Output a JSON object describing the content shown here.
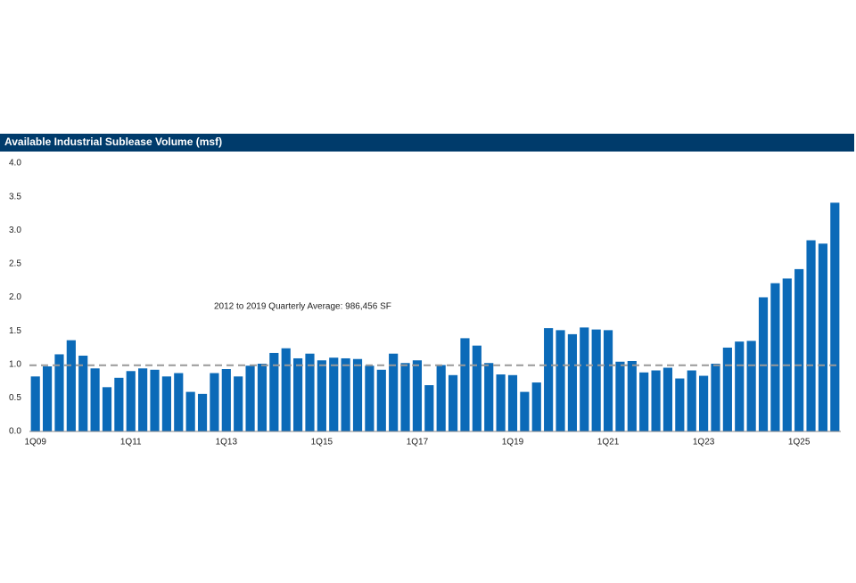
{
  "chart_data": {
    "type": "bar",
    "title": "Available Industrial Sublease Volume (msf)",
    "categories": [
      "1Q09",
      null,
      null,
      null,
      null,
      null,
      null,
      null,
      "1Q11",
      null,
      null,
      null,
      null,
      null,
      null,
      null,
      "1Q13",
      null,
      null,
      null,
      null,
      null,
      null,
      null,
      "1Q15",
      null,
      null,
      null,
      null,
      null,
      null,
      null,
      "1Q17",
      null,
      null,
      null,
      null,
      null,
      null,
      null,
      "1Q19",
      null,
      null,
      null,
      null,
      null,
      null,
      null,
      "1Q21",
      null,
      null,
      null,
      null,
      null,
      null,
      null,
      "1Q23",
      null,
      null,
      null,
      null,
      null,
      null,
      null,
      "1Q25",
      null,
      null,
      null
    ],
    "values": [
      0.82,
      0.97,
      1.15,
      1.36,
      1.13,
      0.94,
      0.66,
      0.8,
      0.9,
      0.94,
      0.92,
      0.82,
      0.87,
      0.59,
      0.56,
      0.87,
      0.93,
      0.82,
      0.98,
      1.01,
      1.17,
      1.24,
      1.09,
      1.16,
      1.06,
      1.1,
      1.09,
      1.08,
      0.98,
      0.92,
      1.16,
      1.02,
      1.06,
      0.69,
      0.99,
      0.84,
      1.39,
      1.28,
      1.02,
      0.85,
      0.84,
      0.59,
      0.73,
      1.54,
      1.51,
      1.45,
      1.55,
      1.52,
      1.51,
      1.04,
      1.05,
      0.88,
      0.91,
      0.95,
      0.79,
      0.91,
      0.83,
      1.01,
      1.25,
      1.34,
      1.35,
      2.0,
      2.21,
      2.28,
      2.42,
      2.85,
      2.8,
      3.41
    ],
    "color": "#0b6ab8",
    "ylim": [
      0,
      4
    ],
    "yticks": [
      {
        "value": 0,
        "label": "0.0"
      },
      0.5,
      {
        "value": 1,
        "label": "1.0"
      },
      1.5,
      {
        "value": 2,
        "label": "2.0"
      },
      2.5,
      {
        "value": 3,
        "label": "3.0"
      },
      3.5,
      {
        "value": 4,
        "label": "4.0"
      }
    ],
    "grid": false,
    "reference_line": {
      "value": 0.986456,
      "label": "2012 to 2019 Quarterly Average: 986,456 SF",
      "color": "#999999"
    }
  }
}
